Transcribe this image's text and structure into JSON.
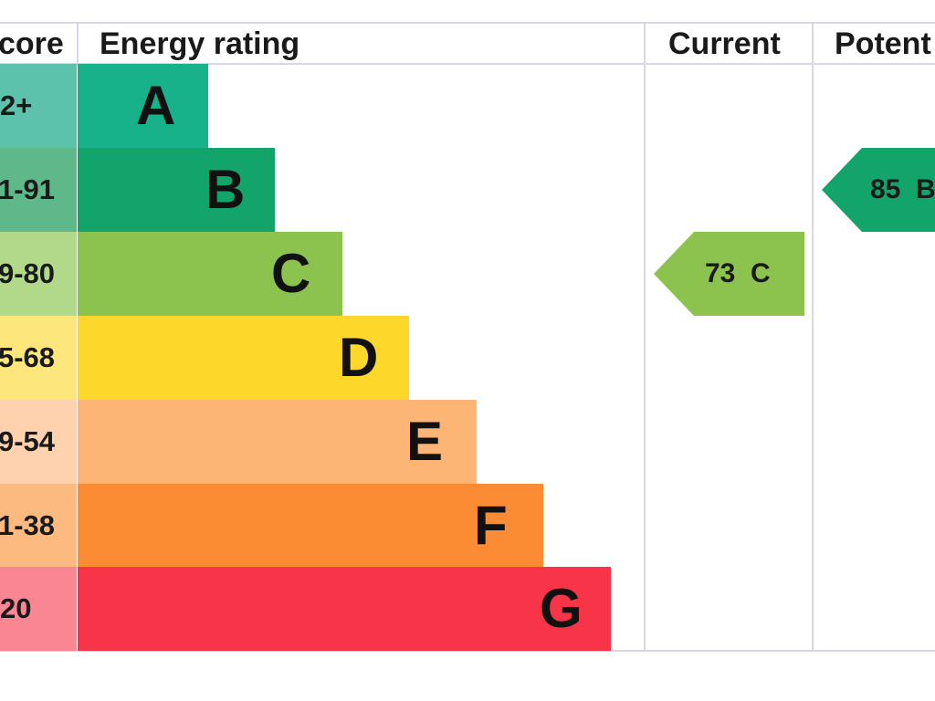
{
  "chart_data": {
    "type": "bar",
    "headers": {
      "score": "core",
      "rating": "Energy rating",
      "current": "Current",
      "potential": "Potent"
    },
    "bands": [
      {
        "score_range": "2+",
        "letter": "A",
        "color": "#17b18a",
        "score_color": "#5cc2ab"
      },
      {
        "score_range": "1-91",
        "letter": "B",
        "color": "#12a46a",
        "score_color": "#5fb889"
      },
      {
        "score_range": "9-80",
        "letter": "C",
        "color": "#8cc34e",
        "score_color": "#b2d98a"
      },
      {
        "score_range": "5-68",
        "letter": "D",
        "color": "#fed72b",
        "score_color": "#fde77d"
      },
      {
        "score_range": "9-54",
        "letter": "E",
        "color": "#fdb576",
        "score_color": "#fed2ae"
      },
      {
        "score_range": "1-38",
        "letter": "F",
        "color": "#fb8c33",
        "score_color": "#fcb980"
      },
      {
        "score_range": "20",
        "letter": "G",
        "color": "#f83448",
        "score_color": "#fa8593"
      }
    ],
    "current": {
      "value": 73,
      "letter": "C",
      "label": "73  C",
      "color": "#8cc34e"
    },
    "potential": {
      "value": 85,
      "letter": "B",
      "label": "85  B",
      "color": "#12a46a"
    }
  }
}
